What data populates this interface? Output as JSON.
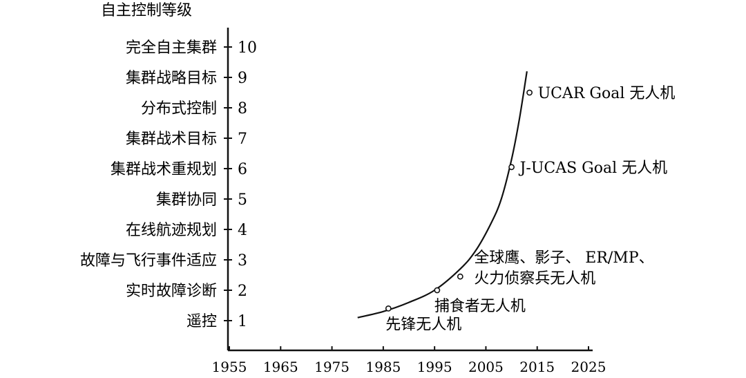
{
  "chart_data": {
    "type": "line",
    "ylabel": "自主控制等级",
    "x_ticks": [
      "1955",
      "1965",
      "1975",
      "1985",
      "1995",
      "2005",
      "2015",
      "2025"
    ],
    "xlim": [
      1955,
      2025
    ],
    "ylim": [
      0,
      10.5
    ],
    "levels": [
      {
        "value": 1,
        "label": "遥控"
      },
      {
        "value": 2,
        "label": "实时故障诊断"
      },
      {
        "value": 3,
        "label": "故障与飞行事件适应"
      },
      {
        "value": 4,
        "label": "在线航迹规划"
      },
      {
        "value": 5,
        "label": "集群协同"
      },
      {
        "value": 6,
        "label": "集群战术重规划"
      },
      {
        "value": 7,
        "label": "集群战术目标"
      },
      {
        "value": 8,
        "label": "分布式控制"
      },
      {
        "value": 9,
        "label": "集群战略目标"
      },
      {
        "value": 10,
        "label": "完全自主集群"
      }
    ],
    "trend_curve": {
      "x": [
        1980,
        1985,
        1990,
        1995,
        2000,
        2003,
        2006,
        2008,
        2010,
        2011.5,
        2013
      ],
      "y": [
        1.1,
        1.3,
        1.6,
        2.0,
        2.7,
        3.3,
        4.2,
        5.0,
        6.3,
        7.6,
        9.2
      ]
    },
    "points": [
      {
        "x": 1986,
        "y": 1.4,
        "lines": [
          "先锋无人机"
        ],
        "pos": "below"
      },
      {
        "x": 1995.5,
        "y": 2.0,
        "lines": [
          "捕食者无人机"
        ],
        "pos": "below"
      },
      {
        "x": 2000,
        "y": 2.45,
        "lines": [
          "全球鹰、影子、 ER/MP、",
          "火力侦察兵无人机"
        ],
        "pos": "above-right"
      },
      {
        "x": 2010,
        "y": 6.05,
        "lines": [
          "J-UCAS Goal 无人机"
        ],
        "pos": "right"
      },
      {
        "x": 2013.5,
        "y": 8.5,
        "lines": [
          "UCAR Goal 无人机"
        ],
        "pos": "right"
      }
    ]
  }
}
